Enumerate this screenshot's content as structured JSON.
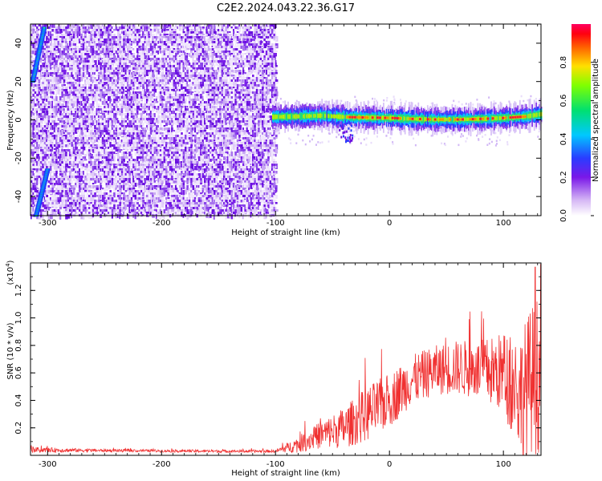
{
  "title": "C2E2.2024.043.22.36.G17",
  "chart_data": [
    {
      "type": "heatmap",
      "xlabel": "Height of straight line (km)",
      "ylabel": "Frequency (Hz)",
      "xlim": [
        -315,
        133
      ],
      "ylim": [
        -50,
        50
      ],
      "x_ticks": [
        -300,
        -200,
        -100,
        0,
        100
      ],
      "x_tick_labels": [
        "-300",
        "-200",
        "-100",
        "0",
        "100"
      ],
      "y_ticks": [
        -40,
        -20,
        0,
        20,
        40
      ],
      "y_tick_labels": [
        "-40",
        "-20",
        "0",
        "20",
        "40"
      ],
      "noise_region_x": [
        -315,
        -100
      ],
      "signal_band": [
        {
          "x": -105,
          "y": 1.5
        },
        {
          "x": -80,
          "y": 1.8
        },
        {
          "x": -60,
          "y": 2.2
        },
        {
          "x": -40,
          "y": 1.5
        },
        {
          "x": -20,
          "y": 1.2
        },
        {
          "x": 0,
          "y": 1.0
        },
        {
          "x": 20,
          "y": 0.5
        },
        {
          "x": 40,
          "y": 0.2
        },
        {
          "x": 60,
          "y": 0.2
        },
        {
          "x": 80,
          "y": 0.5
        },
        {
          "x": 100,
          "y": 1.0
        },
        {
          "x": 120,
          "y": 1.8
        },
        {
          "x": 133,
          "y": 3.0
        }
      ],
      "streak": [
        {
          "x": -313,
          "y": 20
        },
        {
          "x": -303,
          "y": 48
        }
      ],
      "streak2": [
        {
          "x": -300,
          "y": -26
        },
        {
          "x": -310,
          "y": -50
        }
      ],
      "colorbar": {
        "label": "Normalized spectral amplitude",
        "range": [
          0,
          1
        ],
        "ticks": [
          0.0,
          0.2,
          0.4,
          0.6,
          0.8
        ],
        "tick_labels": [
          "0.0",
          "0.2",
          "0.4",
          "0.6",
          "0.8"
        ]
      },
      "grid": false
    },
    {
      "type": "line",
      "xlabel": "Height of straight line (km)",
      "ylabel": "SNR (10 * v/v)",
      "multiplier_label": "(x10",
      "multiplier_exp": "4",
      "multiplier_close": ")",
      "xlim": [
        -315,
        133
      ],
      "ylim": [
        0,
        1.4
      ],
      "x_ticks": [
        -300,
        -200,
        -100,
        0,
        100
      ],
      "x_tick_labels": [
        "-300",
        "-200",
        "-100",
        "0",
        "100"
      ],
      "y_ticks": [
        0.2,
        0.4,
        0.6,
        0.8,
        1.0,
        1.2
      ],
      "y_tick_labels": [
        "0.2",
        "0.4",
        "0.6",
        "0.8",
        "1.0",
        "1.2"
      ],
      "color": "#f03030",
      "envelope": [
        {
          "x": -315,
          "mean": 0.04,
          "spread": 0.02
        },
        {
          "x": -250,
          "mean": 0.035,
          "spread": 0.01
        },
        {
          "x": -150,
          "mean": 0.03,
          "spread": 0.01
        },
        {
          "x": -100,
          "mean": 0.03,
          "spread": 0.01
        },
        {
          "x": -80,
          "mean": 0.08,
          "spread": 0.06
        },
        {
          "x": -60,
          "mean": 0.15,
          "spread": 0.1
        },
        {
          "x": -40,
          "mean": 0.2,
          "spread": 0.15
        },
        {
          "x": -20,
          "mean": 0.3,
          "spread": 0.2
        },
        {
          "x": 0,
          "mean": 0.4,
          "spread": 0.2
        },
        {
          "x": 20,
          "mean": 0.55,
          "spread": 0.18
        },
        {
          "x": 40,
          "mean": 0.62,
          "spread": 0.18
        },
        {
          "x": 60,
          "mean": 0.64,
          "spread": 0.2
        },
        {
          "x": 80,
          "mean": 0.62,
          "spread": 0.22
        },
        {
          "x": 100,
          "mean": 0.6,
          "spread": 0.3
        },
        {
          "x": 115,
          "mean": 0.45,
          "spread": 0.45
        },
        {
          "x": 125,
          "mean": 0.55,
          "spread": 0.55
        },
        {
          "x": 133,
          "mean": 0.6,
          "spread": 0.6
        }
      ],
      "peak": {
        "x": 128,
        "y": 1.37
      },
      "grid": false
    }
  ]
}
